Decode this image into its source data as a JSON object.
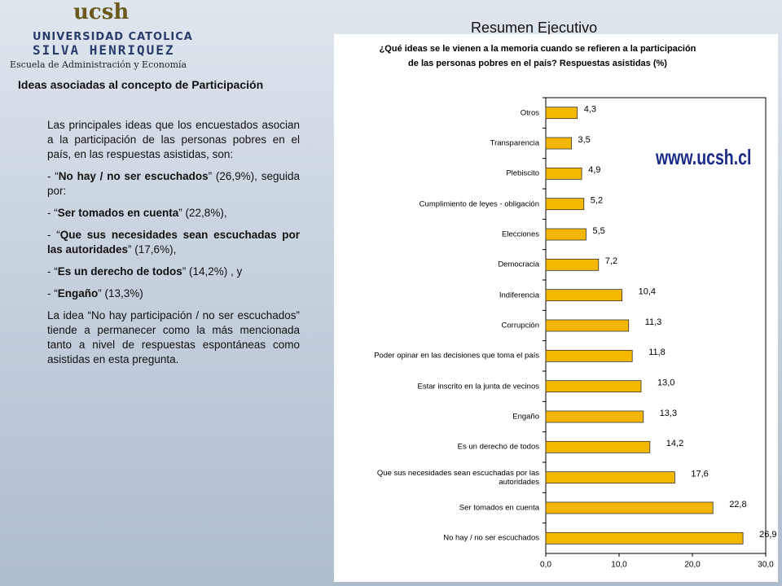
{
  "header": {
    "logo": "ucsh",
    "university_line1": "UNIVERSIDAD CATOLICA",
    "university_line2": "SILVA HENRIQUEZ",
    "school": "Escuela de Administración y Economía",
    "slide_title": "Resumen Ejecutivo",
    "section_title": "Ideas asociadas al concepto de Participación"
  },
  "body": {
    "intro": "Las principales ideas que los encuestados asocian a la participación de las personas pobres en el país, en las respuestas asistidas, son:",
    "items": [
      {
        "prefix": "- “",
        "bold": "No hay / no ser escuchados",
        "rest": "” (26,9%), seguida por:"
      },
      {
        "prefix": "- “",
        "bold": "Ser tomados en cuenta",
        "rest": "” (22,8%),"
      },
      {
        "prefix": "- “",
        "bold": "Que sus necesidades sean escuchadas por las autoridades",
        "rest": "” (17,6%),"
      },
      {
        "prefix": "- “",
        "bold": "Es un derecho de todos",
        "rest": "” (14,2%) , y"
      },
      {
        "prefix": "- “",
        "bold": "Engaño",
        "rest": "” (13,3%)"
      }
    ],
    "conclusion": "La idea “No hay participación / no ser escuchados” tiende a permanecer como la más mencionada tanto a nivel de respuestas espontáneas como asistidas en esta pregunta."
  },
  "watermark": "www.ucsh.cl",
  "chart_data": {
    "type": "barh",
    "title_lines": [
      "¿Qué ideas se le vienen a la memoria cuando se refieren a la participación",
      "de las personas pobres en el país? Respuestas asistidas (%)"
    ],
    "categories": [
      "Otros",
      "Transparencia",
      "Plebiscito",
      "Cumplimiento de leyes - obligación",
      "Elecciones",
      "Democracia",
      "Indiferencia",
      "Corrupción",
      "Poder opinar en las decisiones que toma el país",
      "Estar inscrito en la junta de vecinos",
      "Engaño",
      "Es un derecho de todos",
      "Que sus necesidades sean escuchadas por las autoridades",
      "Ser tomados en cuenta",
      "No hay / no ser escuchados"
    ],
    "values": [
      4.3,
      3.5,
      4.9,
      5.2,
      5.5,
      7.2,
      10.4,
      11.3,
      11.8,
      13.0,
      13.3,
      14.2,
      17.6,
      22.8,
      26.9
    ],
    "value_labels": [
      "4,3",
      "3,5",
      "4,9",
      "5,2",
      "5,5",
      "7,2",
      "10,4",
      "11,3",
      "11,8",
      "13,0",
      "13,3",
      "14,2",
      "17,6",
      "22,8",
      "26,9"
    ],
    "color": "#f5b800",
    "xlim": [
      0,
      30
    ],
    "xticks": [
      {
        "value": 0,
        "label": "0,0"
      },
      {
        "value": 10,
        "label": "10,0"
      },
      {
        "value": 20,
        "label": "20,0"
      },
      {
        "value": 30,
        "label": "30,0"
      }
    ],
    "grid": false
  }
}
